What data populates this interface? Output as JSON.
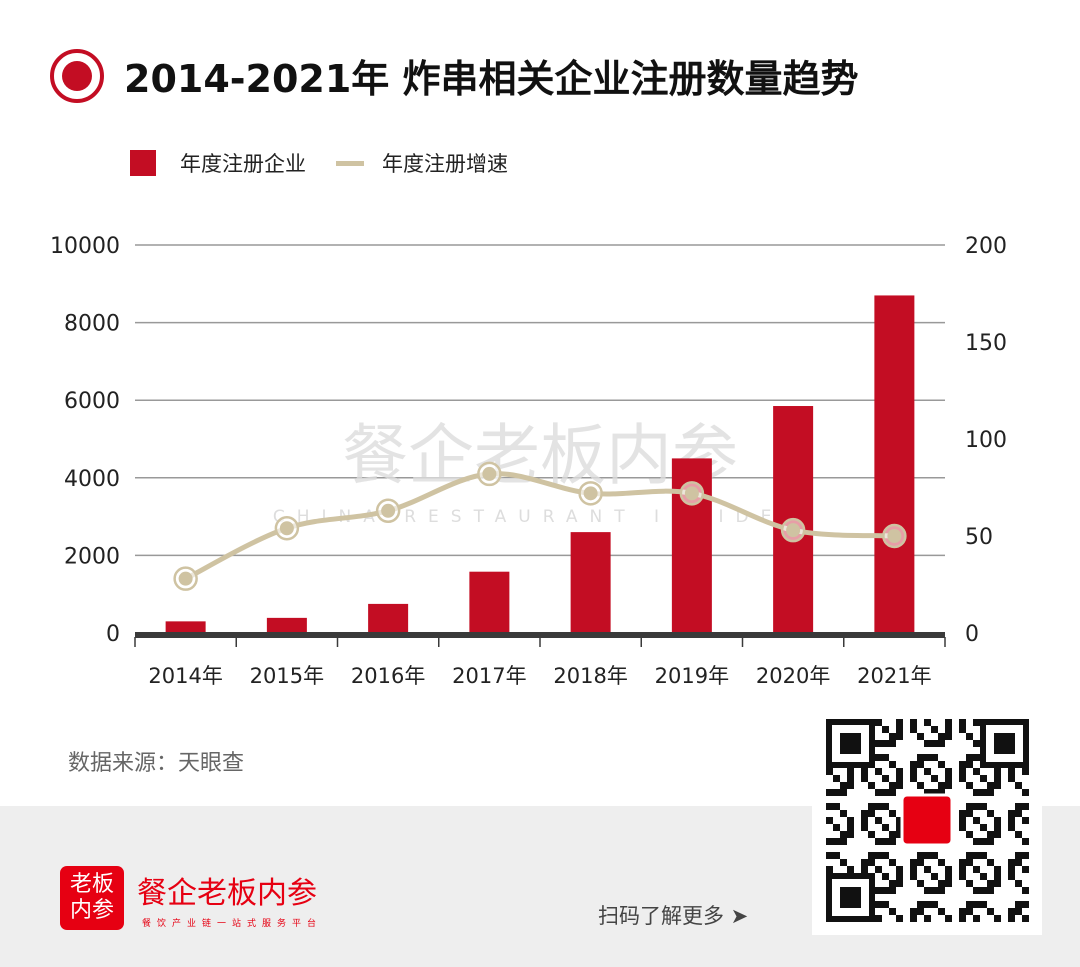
{
  "title": "2014-2021年 炸串相关企业注册数量趋势",
  "legend": {
    "bar": "年度注册企业",
    "line": "年度注册增速"
  },
  "source": "数据来源：天眼查",
  "watermark": {
    "cn": "餐企老板内参",
    "en": "CHINA RESTAURANT INSIDER"
  },
  "footer": {
    "logo": "老板内参",
    "brand": "餐企老板内参",
    "slogan": "餐饮产业链一站式服务平台",
    "scan": "扫码了解更多 ➤"
  },
  "colors": {
    "bar": "#c30d23",
    "line": "#cfc3a2"
  },
  "chart_data": {
    "type": "bar",
    "title": "2014-2021年 炸串相关企业注册数量趋势",
    "categories": [
      "2014年",
      "2015年",
      "2016年",
      "2017年",
      "2018年",
      "2019年",
      "2020年",
      "2021年"
    ],
    "series": [
      {
        "name": "年度注册企业",
        "type": "bar",
        "axis": "left",
        "values": [
          300,
          390,
          750,
          1580,
          2600,
          4500,
          5850,
          8700
        ]
      },
      {
        "name": "年度注册增速",
        "type": "line",
        "axis": "right",
        "values": [
          28,
          54,
          63,
          82,
          72,
          72,
          53,
          50
        ]
      }
    ],
    "yleft": {
      "ticks": [
        "0",
        "2000",
        "4000",
        "6000",
        "8000",
        "10000"
      ],
      "lim": [
        0,
        10000
      ]
    },
    "yright": {
      "ticks": [
        "0",
        "50",
        "100",
        "150",
        "200"
      ],
      "lim": [
        0,
        200
      ]
    },
    "grid": true,
    "legend_position": "top-left"
  }
}
